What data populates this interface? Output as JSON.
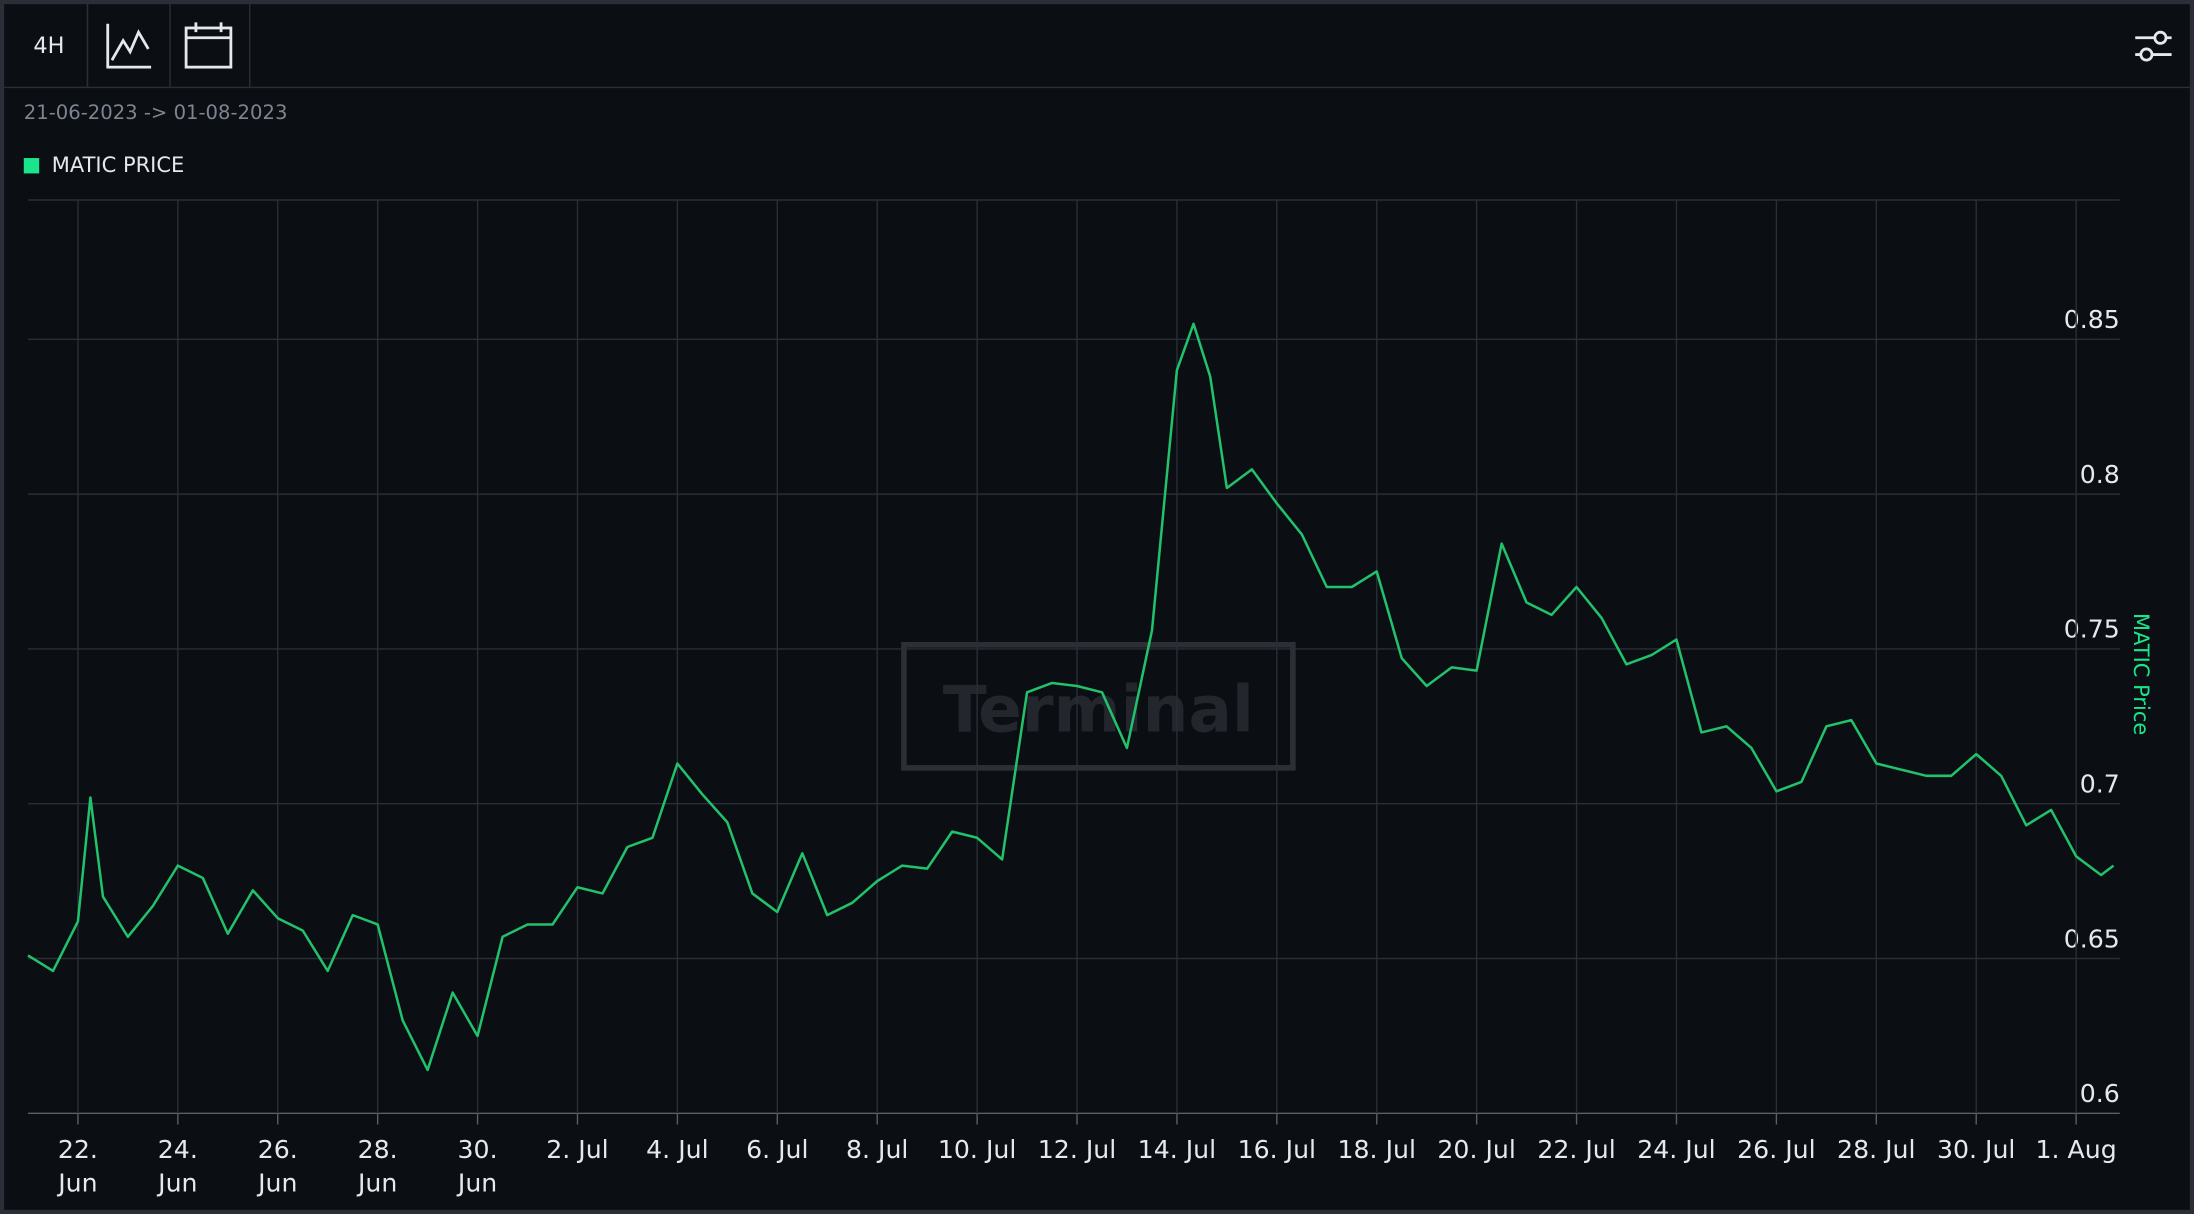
{
  "toolbar": {
    "interval": "4H"
  },
  "chart_data": {
    "type": "line",
    "subtitle": "21-06-2023 -> 01-08-2023",
    "watermark": "Terminal",
    "y_label": "MATIC Price",
    "grid": true,
    "x": [
      "2023-06-21 00:00",
      "2023-06-21 12:00",
      "2023-06-22 00:00",
      "2023-06-22 06:00",
      "2023-06-22 12:00",
      "2023-06-23 00:00",
      "2023-06-23 12:00",
      "2023-06-24 00:00",
      "2023-06-24 12:00",
      "2023-06-25 00:00",
      "2023-06-25 12:00",
      "2023-06-26 00:00",
      "2023-06-26 12:00",
      "2023-06-27 00:00",
      "2023-06-27 12:00",
      "2023-06-28 00:00",
      "2023-06-28 12:00",
      "2023-06-29 00:00",
      "2023-06-29 12:00",
      "2023-06-30 00:00",
      "2023-06-30 12:00",
      "2023-07-01 00:00",
      "2023-07-01 12:00",
      "2023-07-02 00:00",
      "2023-07-02 12:00",
      "2023-07-03 00:00",
      "2023-07-03 12:00",
      "2023-07-04 00:00",
      "2023-07-04 12:00",
      "2023-07-05 00:00",
      "2023-07-05 12:00",
      "2023-07-06 00:00",
      "2023-07-06 12:00",
      "2023-07-07 00:00",
      "2023-07-07 12:00",
      "2023-07-08 00:00",
      "2023-07-08 12:00",
      "2023-07-09 00:00",
      "2023-07-09 12:00",
      "2023-07-10 00:00",
      "2023-07-10 12:00",
      "2023-07-11 00:00",
      "2023-07-11 12:00",
      "2023-07-12 00:00",
      "2023-07-12 12:00",
      "2023-07-13 00:00",
      "2023-07-13 12:00",
      "2023-07-14 00:00",
      "2023-07-14 08:00",
      "2023-07-14 16:00",
      "2023-07-15 00:00",
      "2023-07-15 12:00",
      "2023-07-16 00:00",
      "2023-07-16 12:00",
      "2023-07-17 00:00",
      "2023-07-17 12:00",
      "2023-07-18 00:00",
      "2023-07-18 12:00",
      "2023-07-19 00:00",
      "2023-07-19 12:00",
      "2023-07-20 00:00",
      "2023-07-20 12:00",
      "2023-07-21 00:00",
      "2023-07-21 12:00",
      "2023-07-22 00:00",
      "2023-07-22 12:00",
      "2023-07-23 00:00",
      "2023-07-23 12:00",
      "2023-07-24 00:00",
      "2023-07-24 12:00",
      "2023-07-25 00:00",
      "2023-07-25 12:00",
      "2023-07-26 00:00",
      "2023-07-26 12:00",
      "2023-07-27 00:00",
      "2023-07-27 12:00",
      "2023-07-28 00:00",
      "2023-07-28 12:00",
      "2023-07-29 00:00",
      "2023-07-29 12:00",
      "2023-07-30 00:00",
      "2023-07-30 12:00",
      "2023-07-31 00:00",
      "2023-07-31 12:00",
      "2023-08-01 00:00",
      "2023-08-01 12:00",
      "2023-08-01 18:00"
    ],
    "series": [
      {
        "name": "MATIC PRICE",
        "color": "#22c16b",
        "values": [
          0.651,
          0.646,
          0.662,
          0.702,
          0.67,
          0.657,
          0.667,
          0.68,
          0.676,
          0.658,
          0.672,
          0.663,
          0.659,
          0.646,
          0.664,
          0.661,
          0.63,
          0.614,
          0.639,
          0.625,
          0.657,
          0.661,
          0.661,
          0.673,
          0.671,
          0.686,
          0.689,
          0.713,
          0.703,
          0.694,
          0.671,
          0.665,
          0.684,
          0.664,
          0.668,
          0.675,
          0.68,
          0.679,
          0.691,
          0.689,
          0.682,
          0.736,
          0.739,
          0.738,
          0.736,
          0.718,
          0.756,
          0.84,
          0.855,
          0.838,
          0.802,
          0.808,
          0.797,
          0.787,
          0.77,
          0.77,
          0.775,
          0.747,
          0.738,
          0.744,
          0.743,
          0.784,
          0.765,
          0.761,
          0.77,
          0.76,
          0.745,
          0.748,
          0.753,
          0.723,
          0.725,
          0.718,
          0.704,
          0.707,
          0.725,
          0.727,
          0.713,
          0.711,
          0.709,
          0.709,
          0.716,
          0.709,
          0.693,
          0.698,
          0.683,
          0.677,
          0.68
        ]
      }
    ],
    "legend_color": "#19e68c",
    "xlim": [
      "2023-06-21 00:00",
      "2023-08-01 21:00"
    ],
    "xticks": [
      {
        "value": "2023-06-22",
        "label": "22.\nJun"
      },
      {
        "value": "2023-06-24",
        "label": "24.\nJun"
      },
      {
        "value": "2023-06-26",
        "label": "26.\nJun"
      },
      {
        "value": "2023-06-28",
        "label": "28.\nJun"
      },
      {
        "value": "2023-06-30",
        "label": "30.\nJun"
      },
      {
        "value": "2023-07-02",
        "label": "2. Jul"
      },
      {
        "value": "2023-07-04",
        "label": "4. Jul"
      },
      {
        "value": "2023-07-06",
        "label": "6. Jul"
      },
      {
        "value": "2023-07-08",
        "label": "8. Jul"
      },
      {
        "value": "2023-07-10",
        "label": "10. Jul"
      },
      {
        "value": "2023-07-12",
        "label": "12. Jul"
      },
      {
        "value": "2023-07-14",
        "label": "14. Jul"
      },
      {
        "value": "2023-07-16",
        "label": "16. Jul"
      },
      {
        "value": "2023-07-18",
        "label": "18. Jul"
      },
      {
        "value": "2023-07-20",
        "label": "20. Jul"
      },
      {
        "value": "2023-07-22",
        "label": "22. Jul"
      },
      {
        "value": "2023-07-24",
        "label": "24. Jul"
      },
      {
        "value": "2023-07-26",
        "label": "26. Jul"
      },
      {
        "value": "2023-07-28",
        "label": "28. Jul"
      },
      {
        "value": "2023-07-30",
        "label": "30. Jul"
      },
      {
        "value": "2023-08-01",
        "label": "1. Aug"
      }
    ],
    "ylim": [
      0.6,
      0.895
    ],
    "yticks": [
      0.6,
      0.65,
      0.7,
      0.75,
      0.8,
      0.85
    ]
  }
}
